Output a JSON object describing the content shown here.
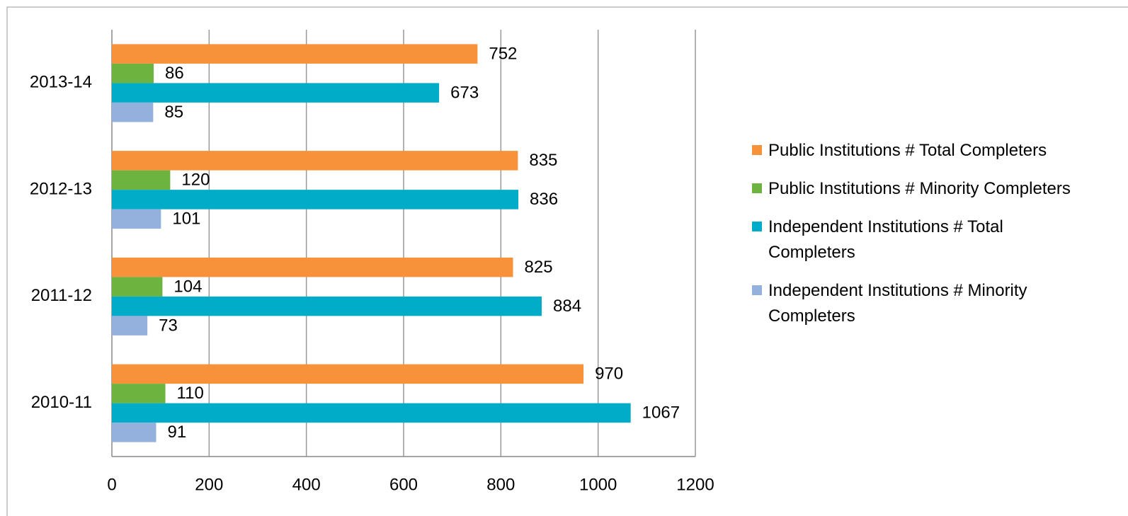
{
  "chart_data": {
    "type": "barh",
    "categories": [
      "2013-14",
      "2012-13",
      "2011-12",
      "2010-11"
    ],
    "series": [
      {
        "name": "Public Institutions # Total Completers",
        "color": "#f7923a",
        "values": [
          752,
          835,
          825,
          970
        ]
      },
      {
        "name": "Public Institutions # Minority Completers",
        "color": "#6db33f",
        "values": [
          86,
          120,
          104,
          110
        ]
      },
      {
        "name": "Independent Institutions # Total Completers",
        "color": "#00acc8",
        "values": [
          673,
          836,
          884,
          1067
        ]
      },
      {
        "name": "Independent Institutions # Minority Completers",
        "color": "#93b1dc",
        "values": [
          85,
          101,
          73,
          91
        ]
      }
    ],
    "xlim": [
      0,
      1200
    ],
    "xticks": [
      0,
      200,
      400,
      600,
      800,
      1000,
      1200
    ],
    "grid": true,
    "legend": "right"
  }
}
